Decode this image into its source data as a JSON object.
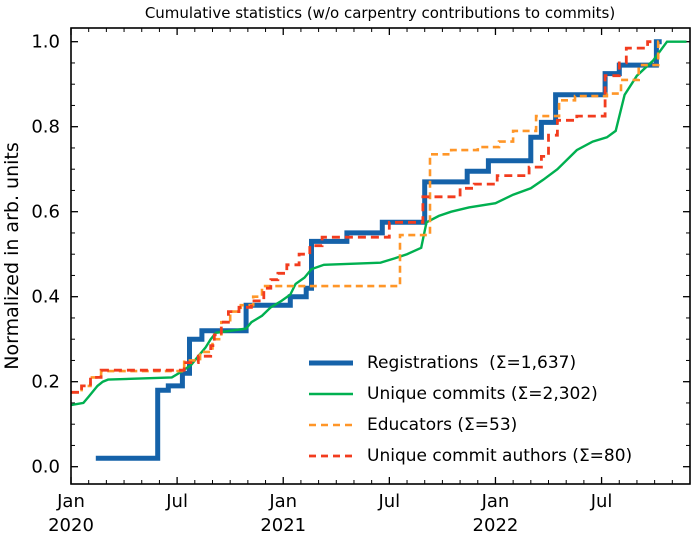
{
  "title": "Cumulative statistics (w/o carpentry contributions to commits)",
  "y_axis": {
    "label": "Normalized in arb. units",
    "ticks": [
      {
        "value": 0.0,
        "label": "0.0"
      },
      {
        "value": 0.2,
        "label": "0.2"
      },
      {
        "value": 0.4,
        "label": "0.4"
      },
      {
        "value": 0.6,
        "label": "0.6"
      },
      {
        "value": 0.8,
        "label": "0.8"
      },
      {
        "value": 1.0,
        "label": "1.0"
      }
    ],
    "minor_step": 0.05,
    "range_shown": [
      0.0,
      1.0
    ]
  },
  "x_axis": {
    "unit": "months since Jan 2020",
    "major_ticks": [
      {
        "month": 0,
        "label": "Jan",
        "year": "2020"
      },
      {
        "month": 6,
        "label": "Jul",
        "year": ""
      },
      {
        "month": 12,
        "label": "Jan",
        "year": "2021"
      },
      {
        "month": 18,
        "label": "Jul",
        "year": ""
      },
      {
        "month": 24,
        "label": "Jan",
        "year": "2022"
      },
      {
        "month": 30,
        "label": "Jul",
        "year": ""
      }
    ],
    "minor_step_months": 1,
    "range_months": [
      0,
      35
    ]
  },
  "chart_data": {
    "type": "line",
    "title": "Cumulative statistics (w/o carpentry contributions to commits)",
    "xlabel": "",
    "ylabel": "Normalized in arb. units",
    "x_unit": "months since Jan 2020",
    "ylim": [
      0,
      1.05
    ],
    "grid": false,
    "legend_position": "lower right inside, frameless",
    "axis_color": "#000000",
    "background": "#ffffff",
    "series": [
      {
        "name": "Registrations",
        "legend_label": "Registrations  (Σ=1,637)",
        "total": 1637,
        "color": "#1562a9",
        "width": 5,
        "dash": null,
        "mode": "step",
        "points": [
          [
            1.4,
            0.02
          ],
          [
            4.9,
            0.18
          ],
          [
            5.5,
            0.19
          ],
          [
            6.3,
            0.22
          ],
          [
            6.7,
            0.3
          ],
          [
            7.4,
            0.32
          ],
          [
            9.9,
            0.38
          ],
          [
            12.4,
            0.4
          ],
          [
            13.3,
            0.42
          ],
          [
            13.6,
            0.53
          ],
          [
            15.6,
            0.55
          ],
          [
            17.6,
            0.575
          ],
          [
            20.0,
            0.67
          ],
          [
            22.4,
            0.695
          ],
          [
            23.6,
            0.72
          ],
          [
            26.0,
            0.775
          ],
          [
            26.6,
            0.81
          ],
          [
            27.4,
            0.875
          ],
          [
            30.2,
            0.925
          ],
          [
            31.0,
            0.945
          ],
          [
            33.1,
            1.0
          ],
          [
            33.4,
            1.0
          ]
        ]
      },
      {
        "name": "Unique commits",
        "legend_label": "Unique commits (Σ=2,302)",
        "total": 2302,
        "color": "#00b050",
        "width": 2.4,
        "dash": null,
        "mode": "line",
        "points": [
          [
            0,
            0.145
          ],
          [
            0.7,
            0.15
          ],
          [
            1.0,
            0.165
          ],
          [
            1.5,
            0.19
          ],
          [
            1.8,
            0.2
          ],
          [
            2.1,
            0.205
          ],
          [
            5.7,
            0.21
          ],
          [
            6.3,
            0.225
          ],
          [
            6.8,
            0.24
          ],
          [
            7.2,
            0.26
          ],
          [
            7.6,
            0.28
          ],
          [
            7.9,
            0.3
          ],
          [
            8.2,
            0.315
          ],
          [
            9.9,
            0.325
          ],
          [
            10.2,
            0.34
          ],
          [
            10.8,
            0.355
          ],
          [
            11.3,
            0.375
          ],
          [
            11.9,
            0.39
          ],
          [
            12.4,
            0.405
          ],
          [
            12.7,
            0.43
          ],
          [
            13.2,
            0.445
          ],
          [
            13.6,
            0.465
          ],
          [
            14.3,
            0.475
          ],
          [
            17.5,
            0.48
          ],
          [
            18.3,
            0.49
          ],
          [
            19.0,
            0.5
          ],
          [
            19.8,
            0.515
          ],
          [
            20.1,
            0.575
          ],
          [
            20.8,
            0.59
          ],
          [
            21.5,
            0.6
          ],
          [
            22.5,
            0.61
          ],
          [
            24.0,
            0.62
          ],
          [
            25.0,
            0.64
          ],
          [
            26.0,
            0.655
          ],
          [
            26.7,
            0.675
          ],
          [
            27.5,
            0.7
          ],
          [
            28.6,
            0.745
          ],
          [
            29.5,
            0.765
          ],
          [
            30.3,
            0.775
          ],
          [
            30.8,
            0.79
          ],
          [
            31.3,
            0.875
          ],
          [
            32.0,
            0.92
          ],
          [
            32.9,
            0.955
          ],
          [
            33.7,
            1.0
          ],
          [
            34.8,
            1.0
          ]
        ]
      },
      {
        "name": "Educators",
        "legend_label": "Educators (Σ=53)",
        "total": 53,
        "color": "#ff9628",
        "width": 2.6,
        "dash": "7 4.5",
        "mode": "step",
        "points": [
          [
            0,
            0.175
          ],
          [
            0.6,
            0.19
          ],
          [
            1.1,
            0.21
          ],
          [
            1.7,
            0.225
          ],
          [
            6.4,
            0.25
          ],
          [
            7.3,
            0.27
          ],
          [
            8.0,
            0.3
          ],
          [
            8.5,
            0.34
          ],
          [
            9.0,
            0.365
          ],
          [
            9.6,
            0.38
          ],
          [
            10.3,
            0.4
          ],
          [
            10.8,
            0.425
          ],
          [
            18.6,
            0.545
          ],
          [
            20.3,
            0.735
          ],
          [
            21.5,
            0.745
          ],
          [
            23.0,
            0.752
          ],
          [
            24.2,
            0.765
          ],
          [
            25.0,
            0.79
          ],
          [
            26.3,
            0.825
          ],
          [
            27.6,
            0.862
          ],
          [
            28.5,
            0.872
          ],
          [
            30.3,
            0.878
          ],
          [
            31.1,
            0.91
          ],
          [
            32.1,
            0.945
          ],
          [
            33.2,
            1.0
          ],
          [
            33.5,
            1.0
          ]
        ]
      },
      {
        "name": "Unique commit authors",
        "legend_label": "Unique commit authors (Σ=80)",
        "total": 80,
        "color": "#f23c1e",
        "width": 2.8,
        "dash": "8 5",
        "mode": "step",
        "points": [
          [
            0,
            0.175
          ],
          [
            0.6,
            0.19
          ],
          [
            1.1,
            0.21
          ],
          [
            1.7,
            0.227
          ],
          [
            6.4,
            0.245
          ],
          [
            7.2,
            0.26
          ],
          [
            7.9,
            0.285
          ],
          [
            8.1,
            0.31
          ],
          [
            8.5,
            0.34
          ],
          [
            8.9,
            0.365
          ],
          [
            9.5,
            0.375
          ],
          [
            10.2,
            0.39
          ],
          [
            10.9,
            0.42
          ],
          [
            11.3,
            0.44
          ],
          [
            11.7,
            0.455
          ],
          [
            12.2,
            0.475
          ],
          [
            12.9,
            0.5
          ],
          [
            13.5,
            0.52
          ],
          [
            14.2,
            0.54
          ],
          [
            18.0,
            0.575
          ],
          [
            19.9,
            0.635
          ],
          [
            22.0,
            0.655
          ],
          [
            22.8,
            0.665
          ],
          [
            24.1,
            0.685
          ],
          [
            25.9,
            0.705
          ],
          [
            26.6,
            0.73
          ],
          [
            27.0,
            0.78
          ],
          [
            27.5,
            0.815
          ],
          [
            28.6,
            0.825
          ],
          [
            30.2,
            0.92
          ],
          [
            31.0,
            0.95
          ],
          [
            31.4,
            0.985
          ],
          [
            32.6,
            1.0
          ],
          [
            33.0,
            1.0
          ]
        ]
      }
    ]
  }
}
